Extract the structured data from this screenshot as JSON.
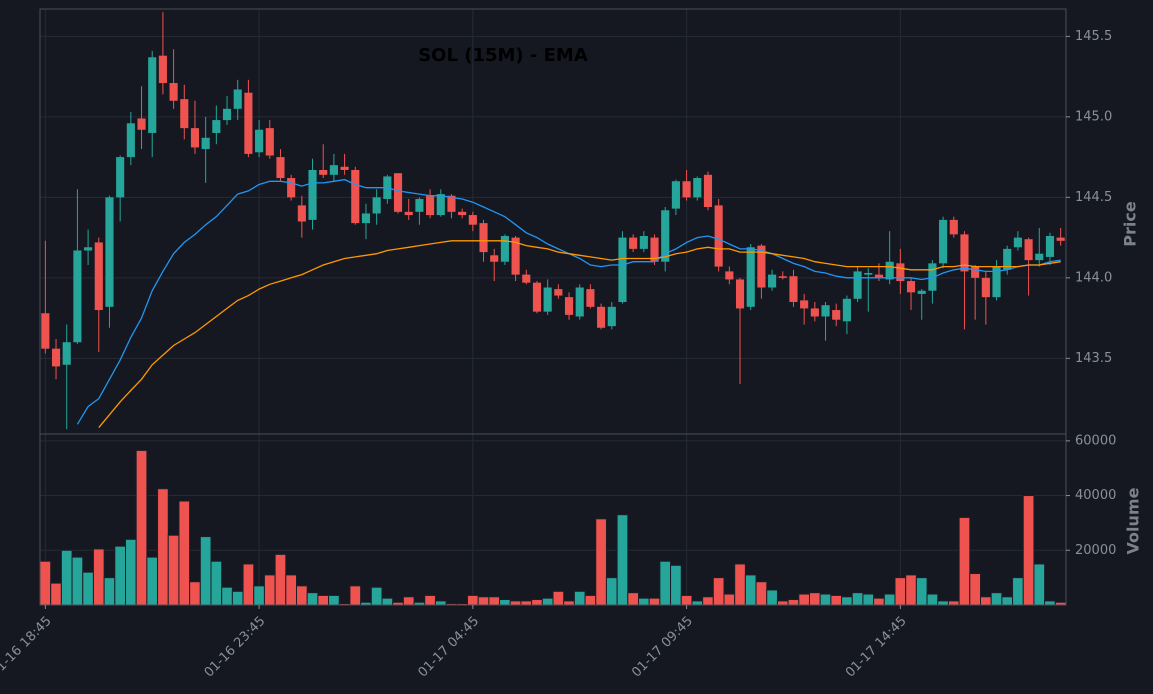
{
  "chart_data": {
    "type": "candlestick",
    "title": "SOL (15M) - EMA",
    "ylabel": "Price",
    "categories": [
      "01-16 18:45",
      null,
      null,
      null,
      null,
      null,
      null,
      null,
      null,
      null,
      null,
      null,
      null,
      null,
      null,
      null,
      null,
      null,
      null,
      null,
      "01-16 23:45",
      null,
      null,
      null,
      null,
      null,
      null,
      null,
      null,
      null,
      null,
      null,
      null,
      null,
      null,
      null,
      null,
      null,
      null,
      null,
      "01-17 04:45",
      null,
      null,
      null,
      null,
      null,
      null,
      null,
      null,
      null,
      null,
      null,
      null,
      null,
      null,
      null,
      null,
      null,
      null,
      null,
      "01-17 09:45",
      null,
      null,
      null,
      null,
      null,
      null,
      null,
      null,
      null,
      null,
      null,
      null,
      null,
      null,
      null,
      null,
      null,
      null,
      null,
      "01-17 14:45",
      null,
      null,
      null,
      null,
      null,
      null,
      null,
      null,
      null,
      null,
      null,
      null,
      null,
      null,
      null
    ],
    "open": [
      143.78,
      143.56,
      143.46,
      143.6,
      144.17,
      144.22,
      143.82,
      144.5,
      144.75,
      144.99,
      144.9,
      145.38,
      145.21,
      145.11,
      144.93,
      144.8,
      144.9,
      144.98,
      145.05,
      145.15,
      144.78,
      144.93,
      144.75,
      144.62,
      144.45,
      144.36,
      144.67,
      144.64,
      144.69,
      144.67,
      144.34,
      144.4,
      144.49,
      144.65,
      144.41,
      144.41,
      144.51,
      144.39,
      144.51,
      144.41,
      144.39,
      144.34,
      144.14,
      144.1,
      144.25,
      144.02,
      143.97,
      143.79,
      143.93,
      143.88,
      143.76,
      143.93,
      143.82,
      143.7,
      143.85,
      144.25,
      144.18,
      144.25,
      144.1,
      144.43,
      144.6,
      144.5,
      144.64,
      144.45,
      144.04,
      143.99,
      143.82,
      144.2,
      143.94,
      144.01,
      144.01,
      143.86,
      143.81,
      143.76,
      143.8,
      143.73,
      143.87,
      144.02,
      144.02,
      143.99,
      144.09,
      143.98,
      143.9,
      143.92,
      144.09,
      144.36,
      144.27,
      144.07,
      144.0,
      143.88,
      144.05,
      144.19,
      144.24,
      144.11,
      144.13,
      144.25
    ],
    "high": [
      144.23,
      143.62,
      143.71,
      144.55,
      144.3,
      144.25,
      144.51,
      144.76,
      145.03,
      145.19,
      145.41,
      145.65,
      145.42,
      145.2,
      145.1,
      145.0,
      145.07,
      145.13,
      145.23,
      145.23,
      144.98,
      144.98,
      144.8,
      144.64,
      144.51,
      144.74,
      144.83,
      144.77,
      144.77,
      144.69,
      144.46,
      144.55,
      144.64,
      144.65,
      144.49,
      144.5,
      144.55,
      144.55,
      144.52,
      144.43,
      144.41,
      144.36,
      144.18,
      144.27,
      144.26,
      144.05,
      143.98,
      143.99,
      143.96,
      143.91,
      143.96,
      143.96,
      143.84,
      143.85,
      144.29,
      144.27,
      144.29,
      144.27,
      144.44,
      144.61,
      144.67,
      144.63,
      144.66,
      144.49,
      144.07,
      144.0,
      144.21,
      144.21,
      144.05,
      144.04,
      144.05,
      143.9,
      143.85,
      143.85,
      143.84,
      143.89,
      144.07,
      144.06,
      144.09,
      144.29,
      144.18,
      144.0,
      143.93,
      144.11,
      144.38,
      144.38,
      144.29,
      144.08,
      144.04,
      144.11,
      144.2,
      144.29,
      144.25,
      144.31,
      144.28,
      144.31
    ],
    "low": [
      143.53,
      143.37,
      143.06,
      143.59,
      144.08,
      143.54,
      143.69,
      144.35,
      144.7,
      144.8,
      144.75,
      145.14,
      145.05,
      144.86,
      144.77,
      144.59,
      144.83,
      144.95,
      144.98,
      144.75,
      144.75,
      144.74,
      144.6,
      144.48,
      144.25,
      144.3,
      144.62,
      144.6,
      144.64,
      144.33,
      144.24,
      144.33,
      144.46,
      144.4,
      144.36,
      144.33,
      144.37,
      144.38,
      144.37,
      144.37,
      144.29,
      144.1,
      143.98,
      144.08,
      143.98,
      143.96,
      143.78,
      143.77,
      143.87,
      143.74,
      143.74,
      143.81,
      143.68,
      143.68,
      143.84,
      144.16,
      144.16,
      144.08,
      144.04,
      144.39,
      144.48,
      144.48,
      144.42,
      144.04,
      143.96,
      143.34,
      143.8,
      143.87,
      143.92,
      143.99,
      143.82,
      143.71,
      143.73,
      143.61,
      143.7,
      143.65,
      143.85,
      143.79,
      143.98,
      143.96,
      143.9,
      143.8,
      143.74,
      143.84,
      144.06,
      144.25,
      143.68,
      143.74,
      143.71,
      143.86,
      144.02,
      144.17,
      143.89,
      144.07,
      144.08,
      144.2
    ],
    "close": [
      143.56,
      143.45,
      143.6,
      144.17,
      144.19,
      143.8,
      144.5,
      144.75,
      144.96,
      144.92,
      145.37,
      145.21,
      145.1,
      144.93,
      144.81,
      144.87,
      144.98,
      145.05,
      145.17,
      144.77,
      144.92,
      144.76,
      144.62,
      144.5,
      144.35,
      144.67,
      144.64,
      144.7,
      144.67,
      144.34,
      144.4,
      144.5,
      144.63,
      144.41,
      144.39,
      144.49,
      144.39,
      144.52,
      144.41,
      144.39,
      144.33,
      144.16,
      144.1,
      144.26,
      144.02,
      143.97,
      143.79,
      143.94,
      143.89,
      143.77,
      143.94,
      143.82,
      143.69,
      143.82,
      144.25,
      144.18,
      144.26,
      144.1,
      144.42,
      144.6,
      144.5,
      144.62,
      144.44,
      144.07,
      143.99,
      143.81,
      144.19,
      143.94,
      144.02,
      144.0,
      143.85,
      143.81,
      143.76,
      143.83,
      143.74,
      143.87,
      144.04,
      144.03,
      144.0,
      144.1,
      143.98,
      143.91,
      143.92,
      144.09,
      144.36,
      144.27,
      144.04,
      144.0,
      143.88,
      144.07,
      144.18,
      144.25,
      144.11,
      144.15,
      144.26,
      144.23
    ],
    "up_color": "#26a69a",
    "down_color": "#ef5350",
    "series": [
      {
        "color": "#2196f3",
        "values": [
          null,
          null,
          null,
          143.09,
          143.2,
          143.25,
          143.37,
          143.49,
          143.63,
          143.75,
          143.92,
          144.04,
          144.15,
          144.22,
          144.27,
          144.33,
          144.38,
          144.45,
          144.52,
          144.54,
          144.58,
          144.6,
          144.6,
          144.59,
          144.57,
          144.59,
          144.59,
          144.6,
          144.61,
          144.58,
          144.56,
          144.56,
          144.56,
          144.54,
          144.53,
          144.52,
          144.51,
          144.51,
          144.5,
          144.49,
          144.47,
          144.44,
          144.41,
          144.38,
          144.33,
          144.28,
          144.25,
          144.21,
          144.18,
          144.15,
          144.12,
          144.08,
          144.07,
          144.08,
          144.08,
          144.1,
          144.1,
          144.1,
          144.15,
          144.18,
          144.22,
          144.25,
          144.26,
          144.24,
          144.21,
          144.18,
          144.18,
          144.17,
          144.15,
          144.12,
          144.09,
          144.07,
          144.04,
          144.03,
          144.01,
          144.0,
          144.0,
          144.0,
          144.0,
          144.0,
          144.0,
          144.0,
          143.99,
          144.0,
          144.03,
          144.05,
          144.06,
          144.05,
          144.04,
          144.04,
          144.05,
          144.07,
          144.08,
          144.08,
          144.1,
          144.11
        ]
      },
      {
        "color": "#ff9800",
        "values": [
          null,
          null,
          null,
          null,
          null,
          143.07,
          143.15,
          143.23,
          143.3,
          143.37,
          143.46,
          143.52,
          143.58,
          143.62,
          143.66,
          143.71,
          143.76,
          143.81,
          143.86,
          143.89,
          143.93,
          143.96,
          143.98,
          144.0,
          144.02,
          144.05,
          144.08,
          144.1,
          144.12,
          144.13,
          144.14,
          144.15,
          144.17,
          144.18,
          144.19,
          144.2,
          144.21,
          144.22,
          144.23,
          144.23,
          144.23,
          144.23,
          144.23,
          144.23,
          144.22,
          144.2,
          144.19,
          144.18,
          144.16,
          144.15,
          144.14,
          144.13,
          144.12,
          144.11,
          144.12,
          144.12,
          144.12,
          144.12,
          144.13,
          144.15,
          144.16,
          144.18,
          144.19,
          144.18,
          144.18,
          144.16,
          144.16,
          144.16,
          144.15,
          144.14,
          144.13,
          144.12,
          144.1,
          144.09,
          144.08,
          144.07,
          144.07,
          144.07,
          144.07,
          144.07,
          144.06,
          144.05,
          144.05,
          144.05,
          144.07,
          144.07,
          144.08,
          144.07,
          144.07,
          144.07,
          144.07,
          144.07,
          144.08,
          144.08,
          144.09,
          144.1
        ]
      }
    ],
    "ylim": [
      143.03,
      145.67
    ],
    "yticks": [
      143.5,
      {
        "value": 144,
        "label": "144.0"
      },
      144.5,
      {
        "value": 145,
        "label": "145.0"
      },
      145.5
    ],
    "grid": true,
    "volume": {
      "ylabel": "Volume",
      "values": [
        16000,
        8000,
        20000,
        17500,
        12000,
        20500,
        10000,
        21500,
        24000,
        56500,
        17500,
        42500,
        25500,
        38000,
        8500,
        25000,
        16000,
        6500,
        5000,
        15000,
        7000,
        11000,
        18500,
        11000,
        7000,
        4500,
        3500,
        3500,
        500,
        7000,
        1000,
        6500,
        2500,
        1000,
        3000,
        1000,
        3500,
        1500,
        500,
        500,
        3500,
        3000,
        3000,
        2000,
        1500,
        1500,
        2000,
        2500,
        5000,
        1500,
        5000,
        3500,
        31500,
        10000,
        33000,
        4500,
        2500,
        2500,
        16000,
        14500,
        3500,
        1500,
        3000,
        10000,
        4000,
        15000,
        11000,
        8500,
        5500,
        1500,
        2000,
        4000,
        4500,
        4000,
        3500,
        3000,
        4500,
        4000,
        2500,
        4000,
        10000,
        11000,
        10000,
        4000,
        1500,
        1500,
        32000,
        11500,
        3000,
        4500,
        3000,
        10000,
        40000,
        15000,
        1500,
        1000
      ],
      "ylim": [
        0,
        62500
      ],
      "yticks": [
        20000,
        40000,
        60000
      ]
    }
  }
}
